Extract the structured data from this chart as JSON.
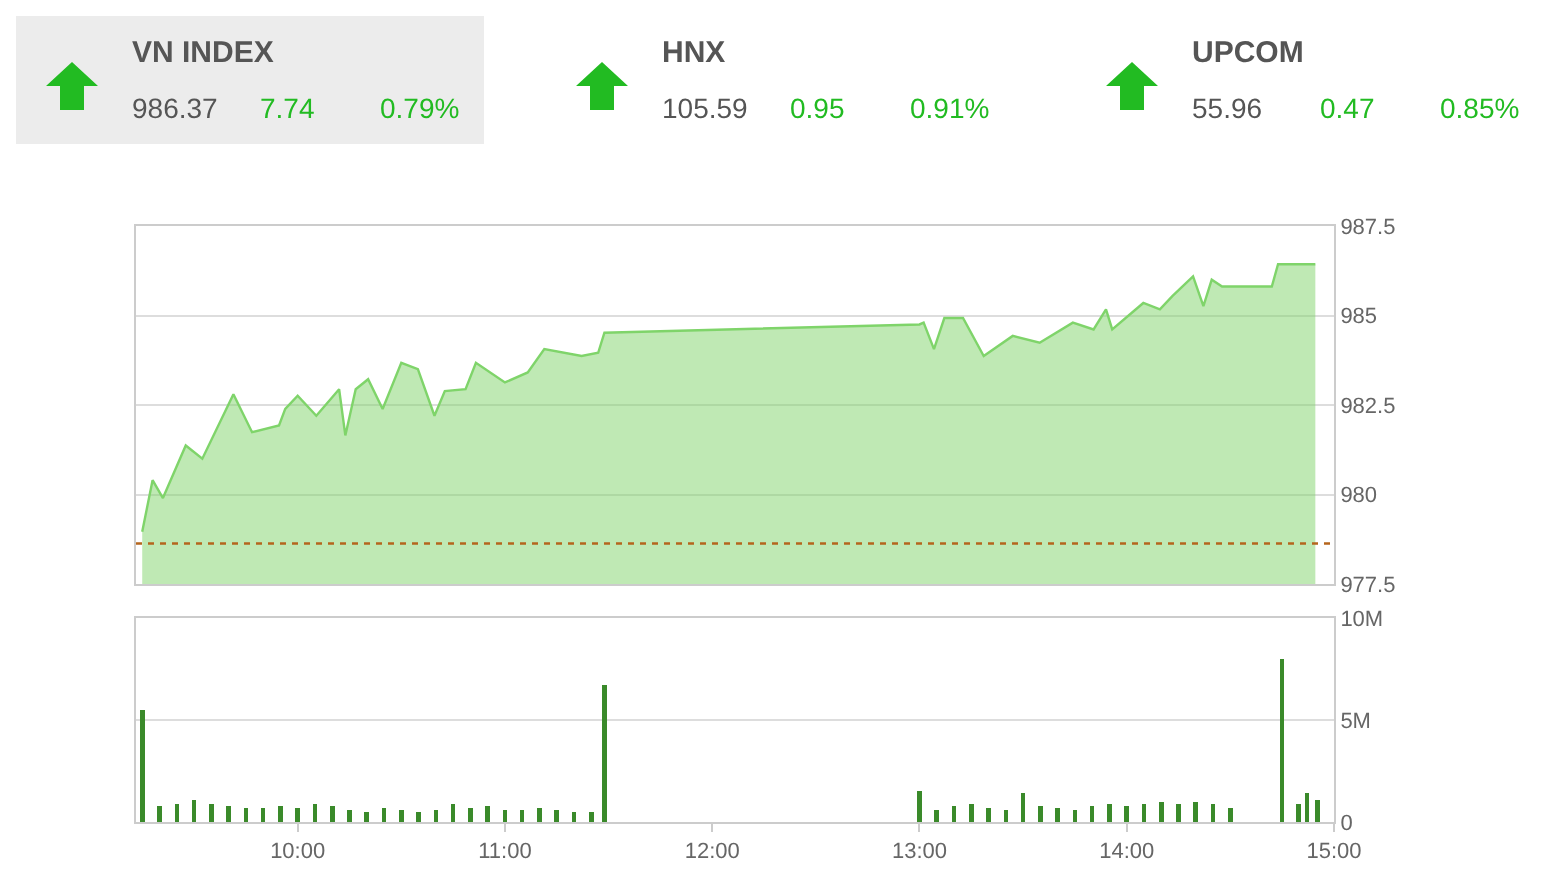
{
  "chart_data": [
    {
      "type": "other",
      "categories": [
        "VN INDEX",
        "HNX",
        "UPCOM"
      ],
      "series": [
        {
          "values": [
            986.37,
            105.59,
            55.96
          ],
          "value_labels": [
            "986.37",
            "105.59",
            "55.96"
          ]
        },
        {
          "values": [
            7.74,
            0.95,
            0.47
          ],
          "value_labels": [
            "7.74",
            "0.95",
            "0.47"
          ]
        },
        {
          "values": [
            0.79,
            0.91,
            0.85
          ],
          "value_labels": [
            "0.79%",
            "0.91%",
            "0.85%"
          ]
        }
      ]
    },
    {
      "type": "area",
      "x": [
        9.25,
        9.3,
        9.35,
        9.46,
        9.54,
        9.69,
        9.78,
        9.91,
        9.94,
        10.0,
        10.09,
        10.2,
        10.23,
        10.28,
        10.34,
        10.41,
        10.5,
        10.58,
        10.66,
        10.71,
        10.81,
        10.86,
        11.0,
        11.11,
        11.19,
        11.37,
        11.45,
        11.48,
        13.0,
        13.02,
        13.07,
        13.12,
        13.21,
        13.31,
        13.45,
        13.58,
        13.74,
        13.84,
        13.9,
        13.93,
        14.08,
        14.16,
        14.22,
        14.32,
        14.37,
        14.41,
        14.46,
        14.7,
        14.73,
        14.91
      ],
      "series": [
        {
          "color": "#7fd46a",
          "values": [
            978.96,
            980.4,
            979.9,
            981.37,
            981.0,
            982.8,
            981.74,
            981.93,
            982.39,
            982.76,
            982.2,
            982.94,
            981.65,
            982.94,
            983.22,
            982.39,
            983.68,
            983.5,
            982.2,
            982.89,
            982.94,
            983.68,
            983.13,
            983.41,
            984.06,
            983.87,
            983.96,
            984.52,
            984.75,
            984.8,
            984.06,
            984.93,
            984.93,
            983.87,
            984.43,
            984.24,
            984.8,
            984.61,
            985.17,
            984.61,
            985.35,
            985.17,
            985.54,
            986.09,
            985.26,
            986.0,
            985.81,
            985.81,
            986.43,
            986.43
          ]
        }
      ],
      "xlim": [
        9.22,
        15.0
      ],
      "ylim": [
        977.5,
        987.5
      ],
      "yticks": [
        977.5,
        980,
        982.5,
        985,
        987.5
      ],
      "ref_lines": [
        {
          "axis": "y",
          "value": 978.63,
          "color": "#b5651d",
          "line_style": "dotted"
        }
      ],
      "grid": "y",
      "tick_labels": "y"
    },
    {
      "type": "bar",
      "x": [
        9.25,
        9.333,
        9.417,
        9.5,
        9.583,
        9.667,
        9.75,
        9.833,
        9.917,
        10.0,
        10.083,
        10.167,
        10.25,
        10.333,
        10.417,
        10.5,
        10.583,
        10.667,
        10.75,
        10.833,
        10.917,
        11.0,
        11.083,
        11.167,
        11.25,
        11.333,
        11.417,
        11.48,
        13.0,
        13.083,
        13.167,
        13.25,
        13.333,
        13.417,
        13.5,
        13.583,
        13.667,
        13.75,
        13.833,
        13.917,
        14.0,
        14.083,
        14.167,
        14.25,
        14.333,
        14.417,
        14.5,
        14.75,
        14.83,
        14.87,
        14.92
      ],
      "series": [
        {
          "color": "#3a8a2a",
          "values": [
            5.5,
            0.8,
            0.9,
            1.1,
            0.9,
            0.8,
            0.7,
            0.7,
            0.8,
            0.7,
            0.9,
            0.8,
            0.6,
            0.5,
            0.7,
            0.6,
            0.5,
            0.6,
            0.9,
            0.7,
            0.8,
            0.6,
            0.6,
            0.7,
            0.6,
            0.5,
            0.5,
            6.7,
            1.5,
            0.6,
            0.8,
            0.9,
            0.7,
            0.6,
            1.4,
            0.8,
            0.7,
            0.6,
            0.8,
            0.9,
            0.8,
            0.9,
            1.0,
            0.9,
            1.0,
            0.9,
            0.7,
            8.0,
            0.9,
            1.4,
            1.1
          ]
        }
      ],
      "xlim": [
        9.22,
        15.0
      ],
      "xticks": [
        {
          "value": 10,
          "label": "10:00"
        },
        {
          "value": 11,
          "label": "11:00"
        },
        {
          "value": 12,
          "label": "12:00"
        },
        {
          "value": 13,
          "label": "13:00"
        },
        {
          "value": 14,
          "label": "14:00"
        },
        {
          "value": 15,
          "label": "15:00"
        }
      ],
      "ylim": [
        0,
        10
      ],
      "yticks": [
        0,
        {
          "value": 5,
          "label": "5M"
        },
        {
          "value": 10,
          "label": "10M"
        }
      ],
      "grid": "y"
    }
  ]
}
